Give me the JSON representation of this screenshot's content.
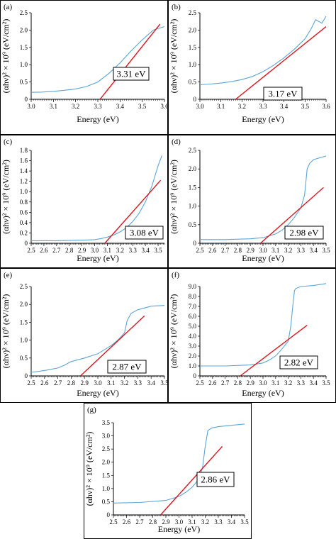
{
  "figure": {
    "colors": {
      "data_line": "#5aa6d8",
      "fit_line": "#e1141b",
      "frame": "#000000"
    }
  },
  "chart_data": [
    {
      "id": "a",
      "label": "(a)",
      "type": "line",
      "xlabel": "Energy (eV)",
      "ylabel": "(αhν)² × 10⁹ (eV/cm²)",
      "xlim": [
        3.0,
        3.6
      ],
      "ylim": [
        0,
        2.5
      ],
      "xticks": [
        "3.0",
        "3.1",
        "3.2",
        "3.3",
        "3.4",
        "3.5",
        "3.6"
      ],
      "yticks": [
        "0",
        "0.5",
        "1.0",
        "1.5",
        "2.0",
        "2.5"
      ],
      "annotation": "3.31 eV",
      "series": [
        {
          "x": [
            3.0,
            3.05,
            3.1,
            3.15,
            3.2,
            3.25,
            3.3,
            3.35,
            3.4,
            3.45,
            3.5,
            3.55,
            3.6
          ],
          "y": [
            0.2,
            0.21,
            0.23,
            0.26,
            0.3,
            0.37,
            0.5,
            0.75,
            1.05,
            1.4,
            1.72,
            2.0,
            2.1
          ]
        }
      ],
      "fit": {
        "x": [
          3.31,
          3.58
        ],
        "y": [
          0,
          2.17
        ]
      }
    },
    {
      "id": "b",
      "label": "(b)",
      "type": "line",
      "xlabel": "Energy (eV)",
      "ylabel": "(αhν)² × 10⁹ (eV/cm²)",
      "xlim": [
        3.0,
        3.6
      ],
      "ylim": [
        0,
        2.5
      ],
      "xticks": [
        "3.0",
        "3.1",
        "3.2",
        "3.3",
        "3.4",
        "3.5",
        "3.6"
      ],
      "yticks": [
        "0",
        "0.5",
        "1.0",
        "1.5",
        "2.0",
        "2.5"
      ],
      "annotation": "3.17 eV",
      "series": [
        {
          "x": [
            3.0,
            3.05,
            3.1,
            3.15,
            3.2,
            3.25,
            3.3,
            3.35,
            3.4,
            3.45,
            3.5,
            3.53,
            3.55,
            3.58,
            3.6
          ],
          "y": [
            0.42,
            0.44,
            0.47,
            0.51,
            0.57,
            0.66,
            0.8,
            0.98,
            1.2,
            1.45,
            1.75,
            2.05,
            2.3,
            2.2,
            2.4
          ]
        }
      ],
      "fit": {
        "x": [
          3.17,
          3.6
        ],
        "y": [
          0,
          2.1
        ]
      }
    },
    {
      "id": "c",
      "label": "(c)",
      "type": "line",
      "xlabel": "Energy (eV)",
      "ylabel": "(αhν)² × 10⁹ (eV/cm²)",
      "xlim": [
        2.5,
        3.55
      ],
      "ylim": [
        0,
        1.8
      ],
      "xticks": [
        "2.5",
        "2.6",
        "2.7",
        "2.8",
        "2.9",
        "3.0",
        "3.1",
        "3.2",
        "3.3",
        "3.4",
        "3.5"
      ],
      "yticks": [
        "0",
        "0.2",
        "0.4",
        "0.6",
        "0.8",
        "1.0",
        "1.2",
        "1.4",
        "1.6",
        "1.8"
      ],
      "annotation": "3.08 eV",
      "series": [
        {
          "x": [
            2.5,
            2.7,
            2.9,
            3.0,
            3.05,
            3.1,
            3.15,
            3.2,
            3.25,
            3.3,
            3.35,
            3.4,
            3.45,
            3.5,
            3.53
          ],
          "y": [
            0.05,
            0.05,
            0.06,
            0.07,
            0.09,
            0.12,
            0.16,
            0.22,
            0.3,
            0.42,
            0.58,
            0.8,
            1.1,
            1.5,
            1.7
          ]
        }
      ],
      "fit": {
        "x": [
          3.08,
          3.52
        ],
        "y": [
          0,
          1.22
        ]
      }
    },
    {
      "id": "d",
      "label": "(d)",
      "type": "line",
      "xlabel": "Energy (eV)",
      "ylabel": "(αhν)² × 10⁹ (eV/cm²)",
      "xlim": [
        2.5,
        3.5
      ],
      "ylim": [
        0,
        2.5
      ],
      "xticks": [
        "2.5",
        "2.6",
        "2.7",
        "2.8",
        "2.9",
        "3.0",
        "3.1",
        "3.2",
        "3.3",
        "3.4",
        "3.5"
      ],
      "yticks": [
        "0",
        "0.5",
        "1.0",
        "1.5",
        "2.0",
        "2.5"
      ],
      "annotation": "2.98 eV",
      "series": [
        {
          "x": [
            2.5,
            2.7,
            2.9,
            3.0,
            3.1,
            3.15,
            3.2,
            3.25,
            3.3,
            3.33,
            3.35,
            3.37,
            3.4,
            3.45,
            3.5
          ],
          "y": [
            0.1,
            0.1,
            0.12,
            0.15,
            0.25,
            0.35,
            0.5,
            0.7,
            0.95,
            1.3,
            2.0,
            2.15,
            2.25,
            2.3,
            2.35
          ]
        }
      ],
      "fit": {
        "x": [
          2.98,
          3.48
        ],
        "y": [
          0,
          1.5
        ]
      }
    },
    {
      "id": "e",
      "label": "(e)",
      "type": "line",
      "xlabel": "Energy (eV)",
      "ylabel": "(αhν)² × 10⁹ (eV/cm²)",
      "xlim": [
        2.5,
        3.5
      ],
      "ylim": [
        0,
        2.5
      ],
      "xticks": [
        "2.5",
        "2.6",
        "2.7",
        "2.8",
        "2.9",
        "3.0",
        "3.1",
        "3.2",
        "3.3",
        "3.4",
        "3.5"
      ],
      "yticks": [
        "0",
        "0.5",
        "1.0",
        "1.5",
        "2.0",
        "2.5"
      ],
      "annotation": "2.87 eV",
      "series": [
        {
          "x": [
            2.5,
            2.6,
            2.7,
            2.75,
            2.8,
            2.85,
            2.9,
            3.0,
            3.1,
            3.15,
            3.2,
            3.22,
            3.25,
            3.3,
            3.4,
            3.5
          ],
          "y": [
            0.1,
            0.15,
            0.22,
            0.3,
            0.4,
            0.45,
            0.5,
            0.62,
            0.85,
            1.0,
            1.2,
            1.55,
            1.75,
            1.85,
            1.95,
            1.97
          ]
        }
      ],
      "fit": {
        "x": [
          2.87,
          3.35
        ],
        "y": [
          0,
          1.68
        ]
      }
    },
    {
      "id": "f",
      "label": "(f)",
      "type": "line",
      "xlabel": "Energy (eV)",
      "ylabel": "(αhν)² × 10⁹ (eV/cm²)",
      "xlim": [
        2.5,
        3.5
      ],
      "ylim": [
        0,
        9.0
      ],
      "xticks": [
        "2.5",
        "2.6",
        "2.7",
        "2.8",
        "2.9",
        "3.0",
        "3.1",
        "3.2",
        "3.3",
        "3.4",
        "3.5"
      ],
      "yticks": [
        "0",
        "1.0",
        "2.0",
        "3.0",
        "4.0",
        "5.0",
        "6.0",
        "7.0",
        "8.0",
        "9.0"
      ],
      "annotation": "2.82 eV",
      "series": [
        {
          "x": [
            2.5,
            2.7,
            2.9,
            3.0,
            3.05,
            3.1,
            3.15,
            3.2,
            3.22,
            3.24,
            3.25,
            3.26,
            3.3,
            3.4,
            3.5
          ],
          "y": [
            1.0,
            1.0,
            1.1,
            1.3,
            1.6,
            2.0,
            2.7,
            3.5,
            5.0,
            7.5,
            8.6,
            8.8,
            9.0,
            9.1,
            9.3
          ]
        }
      ],
      "fit": {
        "x": [
          2.82,
          3.35
        ],
        "y": [
          0,
          5.1
        ]
      }
    },
    {
      "id": "g",
      "label": "(g)",
      "type": "line",
      "xlabel": "Energy (eV)",
      "ylabel": "(αhν)² × 10⁹ (eV/cm²)",
      "xlim": [
        2.5,
        3.5
      ],
      "ylim": [
        0,
        3.5
      ],
      "xticks": [
        "2.5",
        "2.6",
        "2.7",
        "2.8",
        "2.9",
        "3.0",
        "3.1",
        "3.2",
        "3.3",
        "3.4",
        "3.5"
      ],
      "yticks": [
        "0",
        "0.5",
        "1.0",
        "1.5",
        "2.0",
        "2.5",
        "3.0",
        "3.5"
      ],
      "annotation": "2.86 eV",
      "series": [
        {
          "x": [
            2.5,
            2.7,
            2.9,
            3.0,
            3.05,
            3.1,
            3.15,
            3.18,
            3.2,
            3.22,
            3.25,
            3.3,
            3.4,
            3.5
          ],
          "y": [
            0.45,
            0.47,
            0.55,
            0.7,
            0.85,
            1.05,
            1.35,
            1.8,
            2.6,
            3.2,
            3.3,
            3.35,
            3.4,
            3.45
          ]
        }
      ],
      "fit": {
        "x": [
          2.86,
          3.33
        ],
        "y": [
          0,
          2.6
        ]
      }
    }
  ]
}
